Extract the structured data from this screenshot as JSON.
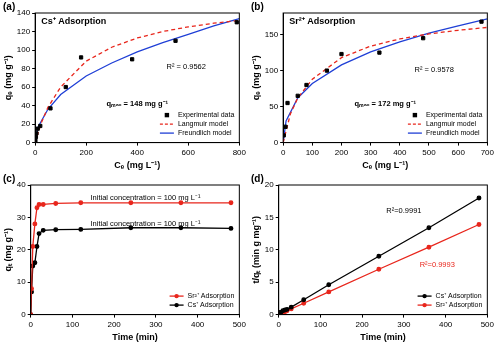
{
  "chart_data": [
    {
      "panel": "(a)",
      "type": "scatter",
      "title": "Cs⁺ Adsorption",
      "xlabel": "Cₑ (mg L⁻¹)",
      "ylabel": "qₑ (mg g⁻¹)",
      "xlim": [
        0,
        800
      ],
      "xticks": [
        0,
        200,
        400,
        600,
        800
      ],
      "ylim": [
        0,
        140
      ],
      "yticks": [
        0,
        20,
        40,
        60,
        80,
        100,
        120,
        140
      ],
      "grid": false,
      "legend": "lower right",
      "annotations": [
        {
          "text": "R² = 0.9562"
        },
        {
          "text": "qₘₐₓ = 148 mg g⁻¹"
        }
      ],
      "series": [
        {
          "name": "Experimental data",
          "type": "scatter",
          "marker": "square",
          "color": "#000000",
          "x": [
            1,
            3,
            5,
            10,
            20,
            60,
            120,
            180,
            380,
            550,
            790
          ],
          "values": [
            2,
            6,
            10,
            15,
            18,
            37,
            60,
            92,
            90,
            110,
            130
          ]
        },
        {
          "name": "Langmuir model",
          "type": "line",
          "marker": "none",
          "line_style": "dashed",
          "color": "#e8261c",
          "x": [
            0,
            25,
            50,
            100,
            200,
            300,
            400,
            500,
            600,
            700,
            800
          ],
          "values": [
            0,
            22,
            38,
            60,
            88,
            103,
            113,
            120,
            125,
            129,
            132
          ]
        },
        {
          "name": "Freundlich model",
          "type": "line",
          "marker": "none",
          "line_style": "solid",
          "color": "#1f3fd6",
          "x": [
            0,
            10,
            50,
            100,
            200,
            300,
            400,
            500,
            600,
            700,
            800
          ],
          "values": [
            0,
            16,
            36,
            52,
            72,
            86,
            98,
            108,
            117,
            126,
            134
          ]
        }
      ]
    },
    {
      "panel": "(b)",
      "type": "scatter",
      "title": "Sr²⁺ Adsorption",
      "xlabel": "Cₑ (mg L⁻¹)",
      "ylabel": "qₑ (mg g⁻¹)",
      "xlim": [
        0,
        700
      ],
      "xticks": [
        0,
        100,
        200,
        300,
        400,
        500,
        600,
        700
      ],
      "ylim": [
        0,
        180
      ],
      "yticks": [
        0,
        50,
        100,
        150
      ],
      "grid": false,
      "legend": "lower right",
      "annotations": [
        {
          "text": "R² = 0.9578"
        },
        {
          "text": "qₘₐₓ = 172 mg g⁻¹"
        }
      ],
      "series": [
        {
          "name": "Experimental data",
          "type": "scatter",
          "marker": "square",
          "color": "#000000",
          "x": [
            2,
            8,
            15,
            50,
            80,
            150,
            200,
            330,
            480,
            680
          ],
          "values": [
            10,
            22,
            55,
            65,
            80,
            100,
            123,
            125,
            145,
            168
          ]
        },
        {
          "name": "Langmuir model",
          "type": "line",
          "marker": "none",
          "line_style": "dashed",
          "color": "#e8261c",
          "x": [
            0,
            25,
            50,
            100,
            200,
            300,
            400,
            500,
            600,
            700
          ],
          "values": [
            0,
            40,
            62,
            88,
            118,
            134,
            144,
            151,
            156,
            160
          ]
        },
        {
          "name": "Freundlich model",
          "type": "line",
          "marker": "none",
          "line_style": "solid",
          "color": "#1f3fd6",
          "x": [
            0,
            10,
            50,
            100,
            200,
            300,
            400,
            500,
            600,
            700
          ],
          "values": [
            0,
            30,
            62,
            82,
            108,
            126,
            140,
            152,
            162,
            172
          ]
        }
      ]
    },
    {
      "panel": "(c)",
      "type": "line",
      "xlabel": "Time (min)",
      "ylabel": "qₜ (mg g⁻¹)",
      "xlim": [
        0,
        500
      ],
      "xticks": [
        0,
        100,
        200,
        300,
        400,
        500
      ],
      "ylim": [
        0,
        40
      ],
      "yticks": [
        0,
        10,
        20,
        30,
        40
      ],
      "grid": false,
      "legend": "lower right",
      "annotations": [
        {
          "text": "Initial concentration = 100 mg L⁻¹"
        },
        {
          "text": "Initial concentration = 100 mg L⁻¹"
        }
      ],
      "series": [
        {
          "name": "Sr²⁺ Adsorption",
          "type": "line",
          "marker": "circle",
          "line_style": "solid",
          "color": "#e8261c",
          "x": [
            0,
            2,
            5,
            10,
            15,
            20,
            30,
            60,
            120,
            240,
            360,
            480
          ],
          "values": [
            0,
            8,
            21,
            28,
            33,
            34,
            34,
            34.3,
            34.5,
            34.5,
            34.5,
            34.5
          ]
        },
        {
          "name": "Cs⁺ Adsorption",
          "type": "line",
          "marker": "circle",
          "line_style": "solid",
          "color": "#000000",
          "x": [
            0,
            2,
            5,
            10,
            15,
            20,
            30,
            60,
            120,
            240,
            360,
            480
          ],
          "values": [
            0,
            7,
            15,
            16,
            21,
            25,
            26,
            26.2,
            26.3,
            26.8,
            26.8,
            26.6
          ]
        }
      ]
    },
    {
      "panel": "(d)",
      "type": "line",
      "xlabel": "Time (min)",
      "ylabel": "t/qₜ (min g mg⁻¹)",
      "xlim": [
        0,
        500
      ],
      "xticks": [
        0,
        100,
        200,
        300,
        400,
        500
      ],
      "ylim": [
        0,
        20
      ],
      "yticks": [
        0,
        5,
        10,
        15,
        20
      ],
      "grid": false,
      "legend": "lower right",
      "annotations": [
        {
          "text": "R²=0.9991",
          "color": "#000000"
        },
        {
          "text": "R²=0.9993",
          "color": "#e8261c"
        }
      ],
      "series": [
        {
          "name": "Cs⁺ Adsorption",
          "type": "line",
          "marker": "circle",
          "line_style": "solid",
          "color": "#000000",
          "x": [
            2,
            5,
            10,
            15,
            20,
            30,
            60,
            120,
            240,
            360,
            480
          ],
          "values": [
            0.3,
            0.33,
            0.6,
            0.7,
            0.8,
            1.15,
            2.3,
            4.6,
            9.0,
            13.4,
            18.0
          ]
        },
        {
          "name": "Sr²⁺ Adsorption",
          "type": "line",
          "marker": "circle",
          "line_style": "solid",
          "color": "#e8261c",
          "x": [
            2,
            5,
            10,
            15,
            20,
            30,
            60,
            120,
            240,
            360,
            480
          ],
          "values": [
            0.25,
            0.24,
            0.36,
            0.45,
            0.59,
            0.88,
            1.75,
            3.5,
            7.0,
            10.4,
            13.9
          ]
        }
      ]
    }
  ]
}
